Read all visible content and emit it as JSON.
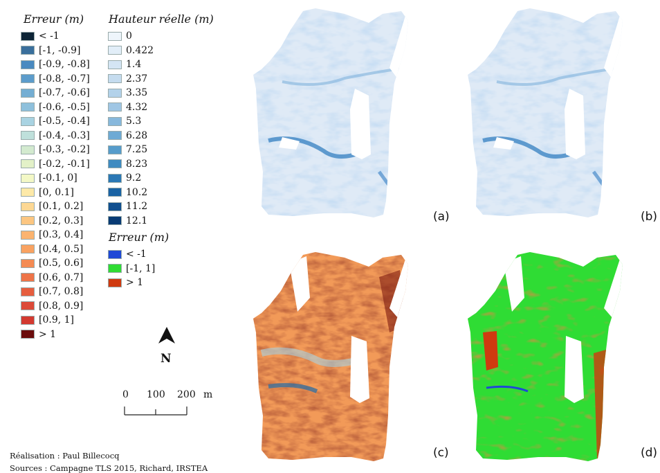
{
  "legend_error": {
    "title": "Erreur (m)",
    "items": [
      {
        "label": "< -1",
        "color": "#0d2436"
      },
      {
        "label": "[-1, -0.9]",
        "color": "#3a6f9c"
      },
      {
        "label": "[-0.9,  -0.8]",
        "color": "#4a8ac0"
      },
      {
        "label": "[-0.8, -0.7]",
        "color": "#5c9ccb"
      },
      {
        "label": "[-0.7, -0.6]",
        "color": "#74aed3"
      },
      {
        "label": "[-0.6, -0.5]",
        "color": "#8ec0dc"
      },
      {
        "label": "[-0.5, -0.4]",
        "color": "#a9d3e2"
      },
      {
        "label": "[-0.4, -0.3]",
        "color": "#bfe0db"
      },
      {
        "label": "[-0.3, -0.2]",
        "color": "#d3eacf"
      },
      {
        "label": "[-0.2, -0.1]",
        "color": "#e3f1c8"
      },
      {
        "label": "[-0.1, 0]",
        "color": "#f3f8c6"
      },
      {
        "label": "[0, 0.1]",
        "color": "#fde9a8"
      },
      {
        "label": "[0.1, 0.2]",
        "color": "#fdd894"
      },
      {
        "label": "[0.2, 0.3]",
        "color": "#fcc681"
      },
      {
        "label": "[0.3, 0.4]",
        "color": "#fbb470"
      },
      {
        "label": "[0.4, 0.5]",
        "color": "#f9a261"
      },
      {
        "label": "[0.5, 0.6]",
        "color": "#f48b53"
      },
      {
        "label": "[0.6, 0.7]",
        "color": "#ee7448"
      },
      {
        "label": "[0.7, 0.8]",
        "color": "#e65e3f"
      },
      {
        "label": "[0.8, 0.9]",
        "color": "#dc4a38"
      },
      {
        "label": "[0.9, 1]",
        "color": "#d33a30"
      },
      {
        "label": "> 1",
        "color": "#6b0d0d"
      }
    ]
  },
  "legend_height": {
    "title": "Hauteur réelle (m)",
    "items": [
      {
        "label": "0",
        "color": "#eef5fb"
      },
      {
        "label": "0.422",
        "color": "#e2eef8"
      },
      {
        "label": "1.4",
        "color": "#d4e5f4"
      },
      {
        "label": "2.37",
        "color": "#c5dcef"
      },
      {
        "label": "3.35",
        "color": "#b3d2ea"
      },
      {
        "label": "4.32",
        "color": "#9fc6e4"
      },
      {
        "label": "5.3",
        "color": "#87b8dc"
      },
      {
        "label": "6.28",
        "color": "#6eaad4"
      },
      {
        "label": "7.25",
        "color": "#569ccb"
      },
      {
        "label": "8.23",
        "color": "#3f8bc1"
      },
      {
        "label": "9.2",
        "color": "#2b78b5"
      },
      {
        "label": "10.2",
        "color": "#1a63a4"
      },
      {
        "label": "11.2",
        "color": "#104f8f"
      },
      {
        "label": "12.1",
        "color": "#083b74"
      }
    ]
  },
  "legend_error_binary": {
    "title": "Erreur (m)",
    "items": [
      {
        "label": "< -1",
        "color": "#1f49d6"
      },
      {
        "label": "[-1, 1]",
        "color": "#2fdc34"
      },
      {
        "label": "> 1",
        "color": "#cf3a10"
      }
    ]
  },
  "north_arrow": {
    "label": "N"
  },
  "scale_bar": {
    "ticks": [
      "0",
      "100",
      "200"
    ],
    "unit": "m"
  },
  "panel_labels": {
    "a": "(a)",
    "b": "(b)",
    "c": "(c)",
    "d": "(d)"
  },
  "credits": {
    "realisation": "Réalisation : Paul Billecocq",
    "sources": "Sources : Campagne TLS 2015, Richard, IRSTEA"
  }
}
